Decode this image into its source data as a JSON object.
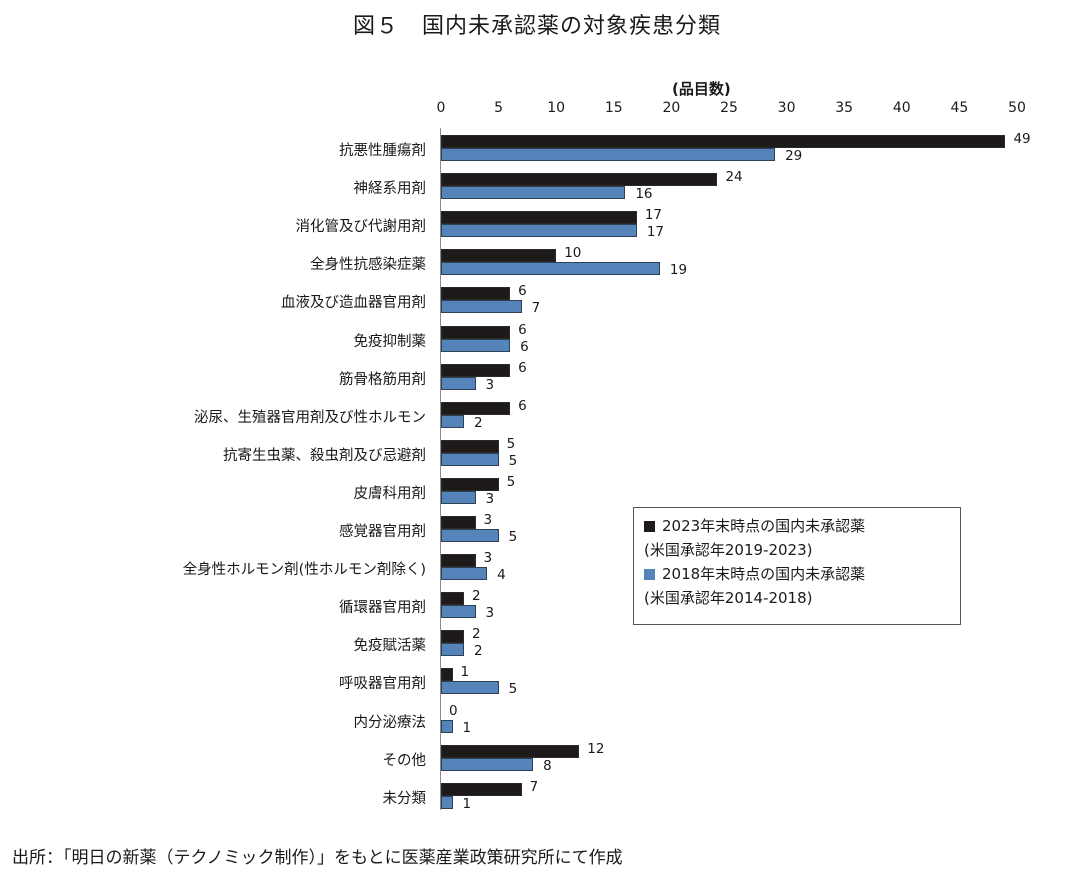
{
  "header": {
    "title": "図５　国内未承認薬の対象疾患分類",
    "unit_label": "(品目数)"
  },
  "legend": {
    "items": [
      {
        "line1": "2023年末時点の国内未承認薬",
        "line2": "(米国承認年2019-2023)",
        "color": "#1f1a1a"
      },
      {
        "line1": "2018年末時点の国内未承認薬",
        "line2": "(米国承認年2014-2018)",
        "color": "#5484ba"
      }
    ]
  },
  "footer": {
    "source": "出所：「明日の新薬（テクノミック制作）」をもとに医薬産業政策研究所にて作成"
  },
  "chart_data": {
    "type": "bar",
    "orientation": "horizontal",
    "title": "図５　国内未承認薬の対象疾患分類",
    "xlabel": "(品目数)",
    "ylabel": "",
    "xlim": [
      0,
      50
    ],
    "xticks": [
      0,
      5,
      10,
      15,
      20,
      25,
      30,
      35,
      40,
      45,
      50
    ],
    "grid": false,
    "legend_position": "inside-right",
    "categories": [
      "抗悪性腫瘍剤",
      "神経系用剤",
      "消化管及び代謝用剤",
      "全身性抗感染症薬",
      "血液及び造血器官用剤",
      "免疫抑制薬",
      "筋骨格筋用剤",
      "泌尿、生殖器官用剤及び性ホルモン",
      "抗寄生虫薬、殺虫剤及び忌避剤",
      "皮膚科用剤",
      "感覚器官用剤",
      "全身性ホルモン剤(性ホルモン剤除く)",
      "循環器官用剤",
      "免疫賦活薬",
      "呼吸器官用剤",
      "内分泌療法",
      "その他",
      "未分類"
    ],
    "series": [
      {
        "name": "2023年末時点の国内未承認薬(米国承認年2019-2023)",
        "color": "#1f1a1a",
        "values": [
          49,
          24,
          17,
          10,
          6,
          6,
          6,
          6,
          5,
          5,
          3,
          3,
          2,
          2,
          1,
          0,
          12,
          7
        ]
      },
      {
        "name": "2018年末時点の国内未承認薬(米国承認年2014-2018)",
        "color": "#5484ba",
        "values": [
          29,
          16,
          17,
          19,
          7,
          6,
          3,
          2,
          5,
          3,
          5,
          4,
          3,
          2,
          5,
          1,
          8,
          1
        ]
      }
    ]
  }
}
